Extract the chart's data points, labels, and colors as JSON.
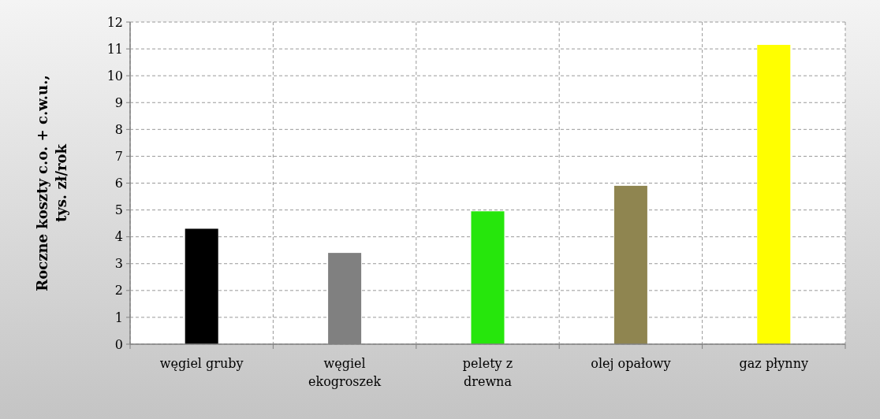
{
  "chart_data": {
    "type": "bar",
    "ylabel": "Roczne koszty c.o. + c.w.u., tys. zł/rok",
    "categories": [
      "węgiel gruby",
      "węgiel ekogroszek",
      "pelety z drewna",
      "olej opałowy",
      "gaz płynny"
    ],
    "values": [
      4.3,
      3.4,
      4.95,
      5.9,
      11.15
    ],
    "colors": [
      "#000000",
      "#808080",
      "#26e60c",
      "#8f8550",
      "#ffff00"
    ],
    "ylim": [
      0,
      12
    ],
    "yticks": [
      0,
      1,
      2,
      3,
      4,
      5,
      6,
      7,
      8,
      9,
      10,
      11,
      12
    ],
    "grid": true
  }
}
